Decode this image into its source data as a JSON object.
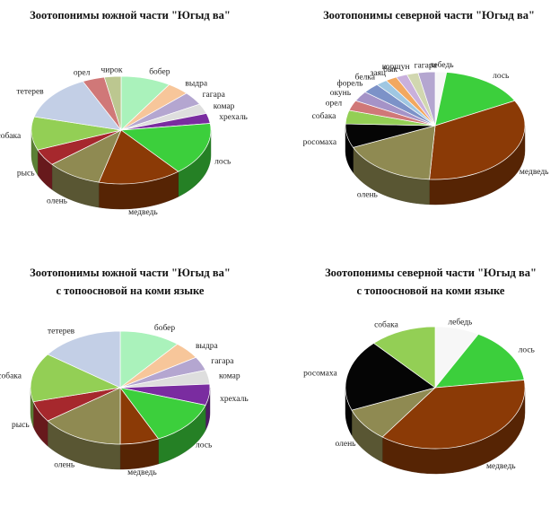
{
  "colors": {
    "бобер": "#aaf2bb",
    "выдра": "#f7c69a",
    "гагара": "#b4a6d0",
    "комар": "#dedede",
    "хрехаль": "#7a2ca0",
    "лось": "#3ccf3c",
    "медведь": "#8b3a06",
    "олень": "#8f8a52",
    "рысь": "#a6282d",
    "собака": "#93cf55",
    "тетерев": "#c3cfe6",
    "орел": "#d07878",
    "чирок": "#bcc790",
    "лебедь": "#f7f7f7",
    "росомаха": "#050505",
    "окунь": "#a593c7",
    "форель": "#7c92c8",
    "белка": "#9fc7e2",
    "заяц": "#f2a860",
    "бык": "#c9b0dc",
    "корщун": "#d1d7b0"
  },
  "chart_data": [
    {
      "type": "pie",
      "title": "Зоотопонимы южной части \"Югыд ва\"",
      "categories": [
        "бобер",
        "выдра",
        "гагара",
        "комар",
        "хрехаль",
        "лось",
        "медведь",
        "олень",
        "рысь",
        "собака",
        "тетерев",
        "орел",
        "чирок"
      ],
      "values": [
        9,
        4,
        4,
        3,
        3,
        16,
        15,
        10,
        5,
        10,
        14,
        4,
        3
      ]
    },
    {
      "type": "pie",
      "title": "Зоотопонимы северной части \"Югыд ва\"",
      "categories": [
        "лебедь",
        "лось",
        "медведь",
        "олень",
        "росомаха",
        "собака",
        "орел",
        "окунь",
        "форель",
        "белка",
        "заяц",
        "бык",
        "корщун",
        "гагара"
      ],
      "values": [
        2,
        15,
        33,
        17,
        7,
        4,
        3,
        3,
        3,
        2,
        2,
        2,
        2,
        3
      ]
    },
    {
      "type": "pie",
      "title": "Зоотопонимы южной части \"Югыд ва\"",
      "subtitle": "с топоосновой на коми языке",
      "categories": [
        "бобер",
        "выдра",
        "гагара",
        "комар",
        "хрехаль",
        "лось",
        "медведь",
        "олень",
        "рысь",
        "собака",
        "тетерев"
      ],
      "values": [
        11,
        5,
        4,
        4,
        6,
        13,
        7,
        15,
        6,
        14,
        15
      ]
    },
    {
      "type": "pie",
      "title": "Зоотопонимы северной части \"Югыд ва\"",
      "subtitle": "с топоосновой на коми языке",
      "categories": [
        "лебедь",
        "лось",
        "медведь",
        "олень",
        "росомаха",
        "собака"
      ],
      "values": [
        8,
        15,
        37,
        9,
        19,
        12
      ]
    }
  ]
}
